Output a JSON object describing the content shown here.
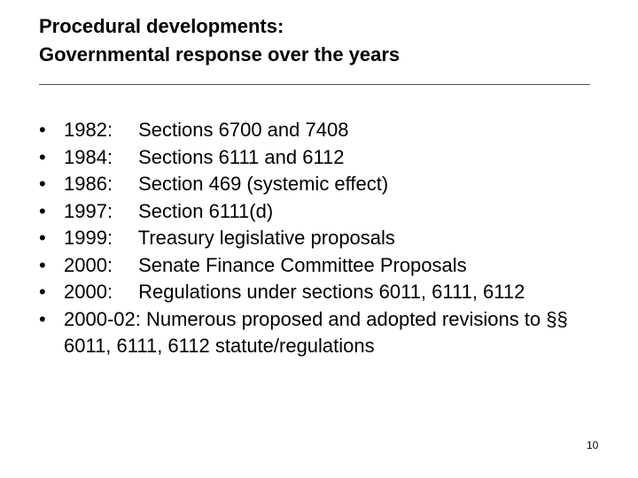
{
  "header": {
    "title_lines": [
      "Procedural developments:",
      "Governmental response over the years"
    ]
  },
  "bullets": [
    {
      "year": "1982:",
      "text": "Sections 6700 and 7408"
    },
    {
      "year": "1984:",
      "text": "Sections 6111 and 6112"
    },
    {
      "year": "1986:",
      "text": "Section 469 (systemic effect)"
    },
    {
      "year": "1997:",
      "text": "Section 6111(d)"
    },
    {
      "year": "1999:",
      "text": "Treasury legislative proposals"
    },
    {
      "year": "2000:",
      "text": "Senate Finance Committee Proposals"
    },
    {
      "year": "2000:",
      "text": "Regulations under sections 6011, 6111, 6112"
    },
    {
      "year": "2000-02:",
      "text": "Numerous proposed and adopted revisions to §§ 6011, 6111, 6112 statute/regulations"
    }
  ],
  "footer": {
    "page_number": "10"
  }
}
